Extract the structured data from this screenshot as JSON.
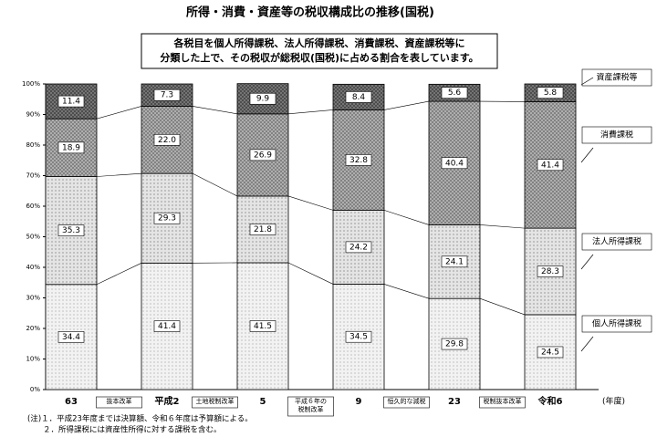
{
  "chart_data": {
    "type": "stacked-bar-100",
    "title": "所得・消費・資産等の税収構成比の推移(国税)",
    "description": [
      "各税目を個人所得課税、法人所得課税、消費課税、資産課税等に",
      "分類した上で、その税収が総税収(国税)に占める割合を表しています。"
    ],
    "categories": [
      "63",
      "平成2",
      "5",
      "9",
      "23",
      "令和6"
    ],
    "x_unit": "(年度)",
    "series": [
      {
        "name": "個人所得課税",
        "color": "#f2f2f2",
        "values": [
          34.4,
          41.4,
          41.5,
          34.5,
          29.8,
          24.5
        ],
        "value_labels": [
          "34.4",
          "41.4",
          "41.5",
          "34.5",
          "29.8",
          "24.5"
        ]
      },
      {
        "name": "法人所得課税",
        "color": "#e4e4e4",
        "values": [
          35.3,
          29.3,
          21.8,
          24.2,
          24.1,
          28.3
        ],
        "value_labels": [
          "35.3",
          "29.3",
          "21.8",
          "24.2",
          "24.1",
          "28.3"
        ]
      },
      {
        "name": "消費課税",
        "color": "#b4b4b4",
        "values": [
          18.9,
          22.0,
          26.9,
          32.8,
          40.4,
          41.4
        ],
        "value_labels": [
          "18.9",
          "22.0",
          "26.9",
          "32.8",
          "40.4",
          "41.4"
        ]
      },
      {
        "name": "資産課税等",
        "color": "#7a7a7a",
        "values": [
          11.4,
          7.3,
          9.9,
          8.4,
          5.6,
          5.8
        ],
        "value_labels": [
          "11.4",
          "7.3",
          "9.9",
          "8.4",
          "5.6",
          "5.8"
        ]
      }
    ],
    "ylim": [
      0,
      100
    ],
    "yticks": [
      {
        "value": 0,
        "label": "0%"
      },
      {
        "value": 10,
        "label": "10%"
      },
      {
        "value": 20,
        "label": "20%"
      },
      {
        "value": 30,
        "label": "30%"
      },
      {
        "value": 40,
        "label": "40%"
      },
      {
        "value": 50,
        "label": "50%"
      },
      {
        "value": 60,
        "label": "60%"
      },
      {
        "value": 70,
        "label": "70%"
      },
      {
        "value": 80,
        "label": "80%"
      },
      {
        "value": 90,
        "label": "90%"
      },
      {
        "value": 100,
        "label": "100%"
      }
    ],
    "annotations": [
      [
        "抜本改革"
      ],
      [
        "土地税制改革"
      ],
      [
        "平成６年の",
        "税制改革"
      ],
      [
        "恒久的な減税"
      ],
      [
        "税制抜本改革"
      ]
    ],
    "notes": [
      "(注)１．平成23年度までは決算額、令和６年度は予算額による。",
      "　　２．所得課税には資産性所得に対する課税を含む。"
    ]
  }
}
